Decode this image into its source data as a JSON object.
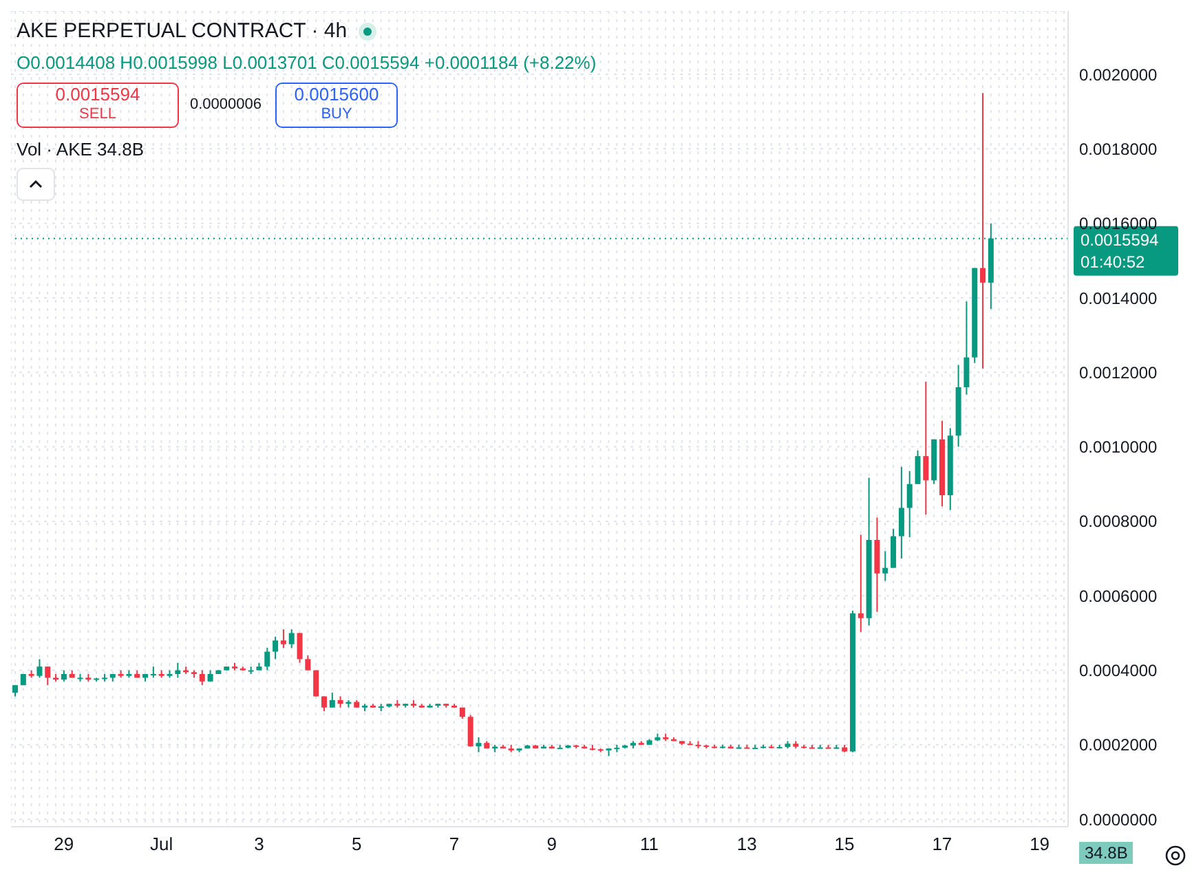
{
  "chart_data": {
    "type": "candlestick",
    "title": "AKE PERPETUAL CONTRACT · 4h",
    "subtitle": "O0.0014408 H0.0015998 L0.0013701 C0.0015594 +0.0001184 (+8.22%)",
    "annotations": [
      "0.0015594",
      "SELL",
      "0.0000006",
      "0.0015600",
      "BUY",
      "Vol · AKE 34.8B",
      "01:40:52",
      "34.8B"
    ],
    "categories": [
      null,
      null,
      null,
      null,
      null,
      null,
      "29",
      null,
      null,
      null,
      null,
      null,
      null,
      null,
      null,
      null,
      null,
      null,
      "Jul",
      null,
      null,
      null,
      null,
      null,
      null,
      null,
      null,
      null,
      null,
      null,
      "3",
      null,
      null,
      null,
      null,
      null,
      null,
      null,
      null,
      null,
      null,
      null,
      "5",
      null,
      null,
      null,
      null,
      null,
      null,
      null,
      null,
      null,
      null,
      null,
      "7",
      null,
      null,
      null,
      null,
      null,
      null,
      null,
      null,
      null,
      null,
      null,
      "9",
      null,
      null,
      null,
      null,
      null,
      null,
      null,
      null,
      null,
      null,
      null,
      "11",
      null,
      null,
      null,
      null,
      null,
      null,
      null,
      null,
      null,
      null,
      null,
      "13",
      null,
      null,
      null,
      null,
      null,
      null,
      null,
      null,
      null,
      null,
      null,
      "15",
      null,
      null,
      null,
      null,
      null,
      null,
      null,
      null,
      null,
      null,
      null,
      "17",
      null,
      null,
      null,
      null,
      null,
      null,
      null,
      null,
      null,
      null,
      null,
      "19",
      null,
      null,
      null
    ],
    "ohlc": [
      [
        0.00034,
        0.00036,
        0.00033,
        0.00036
      ],
      [
        0.00036,
        0.00039,
        0.00036,
        0.00039
      ],
      [
        0.00039,
        0.0004,
        0.00038,
        0.000385
      ],
      [
        0.000385,
        0.00043,
        0.00038,
        0.00041
      ],
      [
        0.00041,
        0.00041,
        0.00036,
        0.00038
      ],
      [
        0.00038,
        0.00039,
        0.00037,
        0.000375
      ],
      [
        0.000375,
        0.0004,
        0.00037,
        0.00039
      ],
      [
        0.00039,
        0.0004,
        0.00038,
        0.00038
      ],
      [
        0.00038,
        0.00039,
        0.00037,
        0.00038
      ],
      [
        0.00038,
        0.00039,
        0.00037,
        0.000375
      ],
      [
        0.000375,
        0.00038,
        0.00037,
        0.000378
      ],
      [
        0.000378,
        0.00039,
        0.00037,
        0.00038
      ],
      [
        0.00038,
        0.00039,
        0.00037,
        0.00039
      ],
      [
        0.00039,
        0.0004,
        0.00038,
        0.000385
      ],
      [
        0.000385,
        0.0004,
        0.00038,
        0.00039
      ],
      [
        0.00039,
        0.0004,
        0.00038,
        0.00038
      ],
      [
        0.00038,
        0.00039,
        0.00037,
        0.00039
      ],
      [
        0.00039,
        0.00041,
        0.00038,
        0.00039
      ],
      [
        0.00039,
        0.0004,
        0.00038,
        0.000385
      ],
      [
        0.000385,
        0.0004,
        0.00038,
        0.00039
      ],
      [
        0.00039,
        0.00042,
        0.00038,
        0.0004
      ],
      [
        0.0004,
        0.00041,
        0.00039,
        0.000395
      ],
      [
        0.000395,
        0.0004,
        0.00038,
        0.00039
      ],
      [
        0.00039,
        0.0004,
        0.00036,
        0.00037
      ],
      [
        0.00037,
        0.0004,
        0.00037,
        0.00039
      ],
      [
        0.00039,
        0.0004,
        0.00039,
        0.0004
      ],
      [
        0.0004,
        0.00041,
        0.0004,
        0.00041
      ],
      [
        0.00041,
        0.00042,
        0.0004,
        0.000405
      ],
      [
        0.000405,
        0.00041,
        0.0004,
        0.0004
      ],
      [
        0.0004,
        0.00041,
        0.00039,
        0.0004
      ],
      [
        0.0004,
        0.00042,
        0.0004,
        0.00041
      ],
      [
        0.00041,
        0.00046,
        0.0004,
        0.00045
      ],
      [
        0.00045,
        0.00049,
        0.00043,
        0.00048
      ],
      [
        0.00048,
        0.00051,
        0.00046,
        0.00047
      ],
      [
        0.00047,
        0.00051,
        0.00046,
        0.0005
      ],
      [
        0.0005,
        0.0005,
        0.00042,
        0.00043
      ],
      [
        0.00043,
        0.00044,
        0.0004,
        0.0004
      ],
      [
        0.0004,
        0.0004,
        0.00033,
        0.00033
      ],
      [
        0.00033,
        0.00033,
        0.00029,
        0.0003
      ],
      [
        0.0003,
        0.00034,
        0.0003,
        0.00032
      ],
      [
        0.00032,
        0.00033,
        0.0003,
        0.00031
      ],
      [
        0.00031,
        0.00032,
        0.0003,
        0.000315
      ],
      [
        0.000315,
        0.00032,
        0.0003,
        0.0003
      ],
      [
        0.0003,
        0.00031,
        0.00029,
        0.000305
      ],
      [
        0.000305,
        0.00031,
        0.0003,
        0.0003
      ],
      [
        0.0003,
        0.00031,
        0.00029,
        0.000303
      ],
      [
        0.000303,
        0.00031,
        0.0003,
        0.00031
      ],
      [
        0.00031,
        0.00032,
        0.0003,
        0.000305
      ],
      [
        0.000305,
        0.00031,
        0.0003,
        0.00031
      ],
      [
        0.00031,
        0.00032,
        0.0003,
        0.000305
      ],
      [
        0.000305,
        0.00031,
        0.0003,
        0.0003
      ],
      [
        0.0003,
        0.00031,
        0.0003,
        0.000305
      ],
      [
        0.000305,
        0.00031,
        0.0003,
        0.00031
      ],
      [
        0.00031,
        0.00031,
        0.0003,
        0.000305
      ],
      [
        0.000305,
        0.00031,
        0.0003,
        0.0003
      ],
      [
        0.0003,
        0.0003,
        0.00027,
        0.000275
      ],
      [
        0.000275,
        0.00028,
        0.000195,
        0.000196
      ],
      [
        0.000196,
        0.00022,
        0.00018,
        0.000205
      ],
      [
        0.000205,
        0.00021,
        0.00019,
        0.00019
      ],
      [
        0.00019,
        0.0002,
        0.00018,
        0.000195
      ],
      [
        0.000195,
        0.0002,
        0.00019,
        0.00019
      ],
      [
        0.00019,
        0.0002,
        0.00018,
        0.000185
      ],
      [
        0.000185,
        0.00019,
        0.00018,
        0.00019
      ],
      [
        0.00019,
        0.0002,
        0.00019,
        0.000198
      ],
      [
        0.000198,
        0.0002,
        0.00019,
        0.00019
      ],
      [
        0.00019,
        0.0002,
        0.00019,
        0.000195
      ],
      [
        0.000195,
        0.0002,
        0.00019,
        0.00019
      ],
      [
        0.00019,
        0.0002,
        0.00019,
        0.000192
      ],
      [
        0.000192,
        0.0002,
        0.00019,
        0.000198
      ],
      [
        0.000198,
        0.0002,
        0.00019,
        0.000195
      ],
      [
        0.000195,
        0.0002,
        0.00019,
        0.00019
      ],
      [
        0.00019,
        0.0002,
        0.000185,
        0.000188
      ],
      [
        0.000188,
        0.00019,
        0.00018,
        0.000185
      ],
      [
        0.000185,
        0.00019,
        0.00017,
        0.00019
      ],
      [
        0.00019,
        0.0002,
        0.00018,
        0.000192
      ],
      [
        0.000192,
        0.0002,
        0.00019,
        0.000198
      ],
      [
        0.000198,
        0.00021,
        0.00019,
        0.000205
      ],
      [
        0.000205,
        0.00021,
        0.0002,
        0.0002
      ],
      [
        0.0002,
        0.000215,
        0.0002,
        0.000212
      ],
      [
        0.000212,
        0.00023,
        0.00021,
        0.00022
      ],
      [
        0.00022,
        0.00023,
        0.00021,
        0.000215
      ],
      [
        0.000215,
        0.00022,
        0.00021,
        0.00021
      ],
      [
        0.00021,
        0.00021,
        0.0002,
        0.000203
      ],
      [
        0.000203,
        0.00021,
        0.0002,
        0.0002
      ],
      [
        0.0002,
        0.00021,
        0.00019,
        0.000198
      ],
      [
        0.000198,
        0.0002,
        0.00019,
        0.000195
      ],
      [
        0.000195,
        0.0002,
        0.00019,
        0.000193
      ],
      [
        0.000193,
        0.0002,
        0.00019,
        0.000195
      ],
      [
        0.000195,
        0.0002,
        0.00019,
        0.00019
      ],
      [
        0.00019,
        0.0002,
        0.00019,
        0.000193
      ],
      [
        0.000193,
        0.0002,
        0.00019,
        0.00019
      ],
      [
        0.00019,
        0.0002,
        0.00019,
        0.000192
      ],
      [
        0.000192,
        0.0002,
        0.00019,
        0.000195
      ],
      [
        0.000195,
        0.0002,
        0.00019,
        0.000193
      ],
      [
        0.000193,
        0.0002,
        0.00019,
        0.000194
      ],
      [
        0.000194,
        0.00021,
        0.00019,
        0.000203
      ],
      [
        0.000203,
        0.00021,
        0.00019,
        0.000195
      ],
      [
        0.000195,
        0.0002,
        0.00019,
        0.000193
      ],
      [
        0.000193,
        0.0002,
        0.00019,
        0.000192
      ],
      [
        0.000192,
        0.0002,
        0.00019,
        0.000193
      ],
      [
        0.000193,
        0.0002,
        0.00019,
        0.000192
      ],
      [
        0.000192,
        0.0002,
        0.00019,
        0.000193
      ],
      [
        0.000193,
        0.0002,
        0.00018,
        0.000182
      ],
      [
        0.000182,
        0.00056,
        0.00018,
        0.000553
      ],
      [
        0.000553,
        0.000764,
        0.000503,
        0.00054
      ],
      [
        0.00054,
        0.000917,
        0.00052,
        0.00075
      ],
      [
        0.00075,
        0.00081,
        0.000557,
        0.00066
      ],
      [
        0.00066,
        0.00072,
        0.00064,
        0.000675
      ],
      [
        0.000675,
        0.00078,
        0.000675,
        0.00076
      ],
      [
        0.00076,
        0.000946,
        0.0007,
        0.000836
      ],
      [
        0.000836,
        0.000935,
        0.000757,
        0.0009
      ],
      [
        0.0009,
        0.00099,
        0.0009,
        0.000975
      ],
      [
        0.000975,
        0.001175,
        0.000818,
        0.00091
      ],
      [
        0.00091,
        0.00102,
        0.0009,
        0.00102
      ],
      [
        0.00102,
        0.00107,
        0.00084,
        0.00087
      ],
      [
        0.00087,
        0.00105,
        0.00083,
        0.00103
      ],
      [
        0.00103,
        0.00122,
        0.001,
        0.00116
      ],
      [
        0.00116,
        0.00139,
        0.00114,
        0.00124
      ],
      [
        0.00124,
        0.00148,
        0.001225,
        0.00148
      ],
      [
        0.00148,
        0.00195,
        0.00121,
        0.0014408
      ],
      [
        0.0014408,
        0.0015998,
        0.0013701,
        0.0015594
      ],
      null,
      null,
      null,
      null,
      null,
      null,
      null,
      null,
      null
    ],
    "colors": [
      "#089981",
      "#089981",
      "#f23645",
      "#089981",
      "#f23645",
      "#f23645",
      "#089981",
      "#f23645",
      "#089981",
      "#f23645",
      "#089981",
      "#089981",
      "#089981",
      "#f23645",
      "#089981",
      "#f23645",
      "#089981",
      "#089981",
      "#f23645",
      "#089981",
      "#089981",
      "#f23645",
      "#f23645",
      "#f23645",
      "#089981",
      "#089981",
      "#089981",
      "#f23645",
      "#f23645",
      "#089981",
      "#089981",
      "#089981",
      "#089981",
      "#f23645",
      "#089981",
      "#f23645",
      "#f23645",
      "#f23645",
      "#f23645",
      "#089981",
      "#f23645",
      "#089981",
      "#f23645",
      "#089981",
      "#f23645",
      "#089981",
      "#089981",
      "#f23645",
      "#089981",
      "#f23645",
      "#f23645",
      "#089981",
      "#089981",
      "#f23645",
      "#f23645",
      "#f23645",
      "#f23645",
      "#089981",
      "#f23645",
      "#089981",
      "#f23645",
      "#f23645",
      "#089981",
      "#089981",
      "#f23645",
      "#089981",
      "#f23645",
      "#089981",
      "#089981",
      "#f23645",
      "#f23645",
      "#f23645",
      "#f23645",
      "#089981",
      "#089981",
      "#089981",
      "#089981",
      "#f23645",
      "#089981",
      "#089981",
      "#f23645",
      "#f23645",
      "#f23645",
      "#f23645",
      "#f23645",
      "#f23645",
      "#f23645",
      "#089981",
      "#f23645",
      "#089981",
      "#f23645",
      "#089981",
      "#089981",
      "#f23645",
      "#089981",
      "#089981",
      "#f23645",
      "#f23645",
      "#f23645",
      "#089981",
      "#f23645",
      "#089981",
      "#f23645",
      "#089981",
      "#f23645",
      "#089981",
      "#f23645",
      "#089981",
      "#089981",
      "#089981",
      "#089981",
      "#089981",
      "#f23645",
      "#089981",
      "#f23645",
      "#089981",
      "#089981",
      "#089981",
      "#089981",
      "#f23645",
      "#089981",
      null,
      null,
      null,
      null,
      null,
      null,
      null,
      null,
      null
    ],
    "ylim": [
      -2e-05,
      0.00217
    ],
    "yticks": [
      {
        "value": 0,
        "label": "0.0000000"
      },
      {
        "value": 0.0002,
        "label": "0.0002000"
      },
      {
        "value": 0.0004,
        "label": "0.0004000"
      },
      {
        "value": 0.0006,
        "label": "0.0006000"
      },
      {
        "value": 0.0008,
        "label": "0.0008000"
      },
      {
        "value": 0.001,
        "label": "0.0010000"
      },
      {
        "value": 0.0012,
        "label": "0.0012000"
      },
      {
        "value": 0.0014,
        "label": "0.0014000"
      },
      {
        "value": 0.0016,
        "label": "0.0016000"
      },
      {
        "value": 0.0018,
        "label": "0.0018000"
      },
      {
        "value": 0.002,
        "label": "0.0020000"
      }
    ],
    "ref_lines": [
      {
        "axis": "y",
        "value": 0.0015594,
        "label": "0.0015594",
        "color": "#089981",
        "line_style": "dotted"
      }
    ],
    "grid": true
  }
}
